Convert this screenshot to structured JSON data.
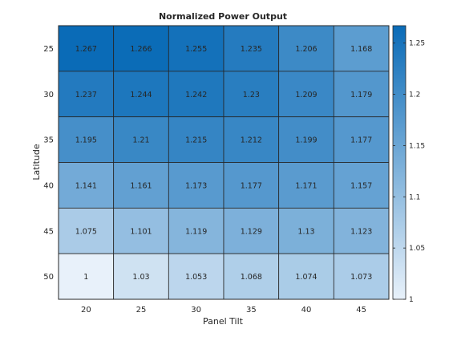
{
  "chart_data": {
    "type": "heatmap",
    "title": "Normalized Power Output",
    "xlabel": "Panel Tilt",
    "ylabel": "Latitude",
    "x_categories": [
      "20",
      "25",
      "30",
      "35",
      "40",
      "45"
    ],
    "y_categories": [
      "25",
      "30",
      "35",
      "40",
      "45",
      "50"
    ],
    "values": [
      [
        1.267,
        1.266,
        1.255,
        1.235,
        1.206,
        1.168
      ],
      [
        1.237,
        1.244,
        1.242,
        1.23,
        1.209,
        1.179
      ],
      [
        1.195,
        1.21,
        1.215,
        1.212,
        1.199,
        1.177
      ],
      [
        1.141,
        1.161,
        1.173,
        1.177,
        1.171,
        1.157
      ],
      [
        1.075,
        1.101,
        1.119,
        1.129,
        1.13,
        1.123
      ],
      [
        1,
        1.03,
        1.053,
        1.068,
        1.074,
        1.073
      ]
    ],
    "colorbar": {
      "min": 1,
      "max": 1.267,
      "ticks": [
        "1",
        "1.05",
        "1.1",
        "1.15",
        "1.2",
        "1.25"
      ],
      "color_low": "#e8f1fa",
      "color_high": "#0a6bb7"
    },
    "grid": false,
    "legend": "colorbar-right"
  }
}
